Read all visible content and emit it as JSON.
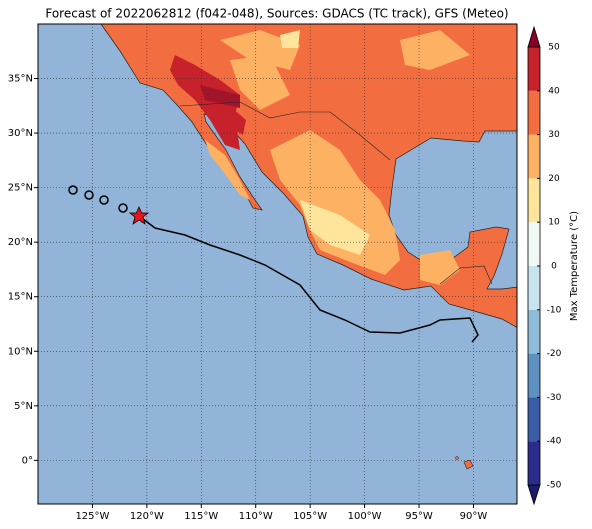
{
  "map": {
    "title": "Forecast of 2022062812 (f042-048), Sources: GDACS (TC track), GFS (Meteo)",
    "lonlim": [
      -130,
      -86
    ],
    "latlim": [
      -4,
      40
    ],
    "lonticks": [
      {
        "value": -125,
        "label": "125°W"
      },
      {
        "value": -120,
        "label": "120°W"
      },
      {
        "value": -115,
        "label": "115°W"
      },
      {
        "value": -110,
        "label": "110°W"
      },
      {
        "value": -105,
        "label": "105°W"
      },
      {
        "value": -100,
        "label": "100°W"
      },
      {
        "value": -95,
        "label": "95°W"
      },
      {
        "value": -90,
        "label": "90°W"
      }
    ],
    "latticks": [
      {
        "value": 0,
        "label": "0°"
      },
      {
        "value": 5,
        "label": "5°N"
      },
      {
        "value": 10,
        "label": "10°N"
      },
      {
        "value": 15,
        "label": "15°N"
      },
      {
        "value": 20,
        "label": "20°N"
      },
      {
        "value": 25,
        "label": "25°N"
      },
      {
        "value": 30,
        "label": "30°N"
      },
      {
        "value": 35,
        "label": "35°N"
      }
    ],
    "grid": true,
    "colorbar": {
      "label": "Max Temperature (°C)",
      "lim": [
        -50,
        50
      ],
      "ticks": [
        -50,
        -40,
        -30,
        -20,
        -10,
        0,
        10,
        20,
        30,
        40,
        50
      ],
      "colors": [
        "#2a2d8c",
        "#3b5da7",
        "#5e90c2",
        "#8fbcd9",
        "#c7e4ef",
        "#f1f9f5",
        "#fee59b",
        "#fdb163",
        "#f26d40",
        "#c7212b"
      ],
      "under_color": "#1b1b6a",
      "over_color": "#8a0026"
    }
  }
}
